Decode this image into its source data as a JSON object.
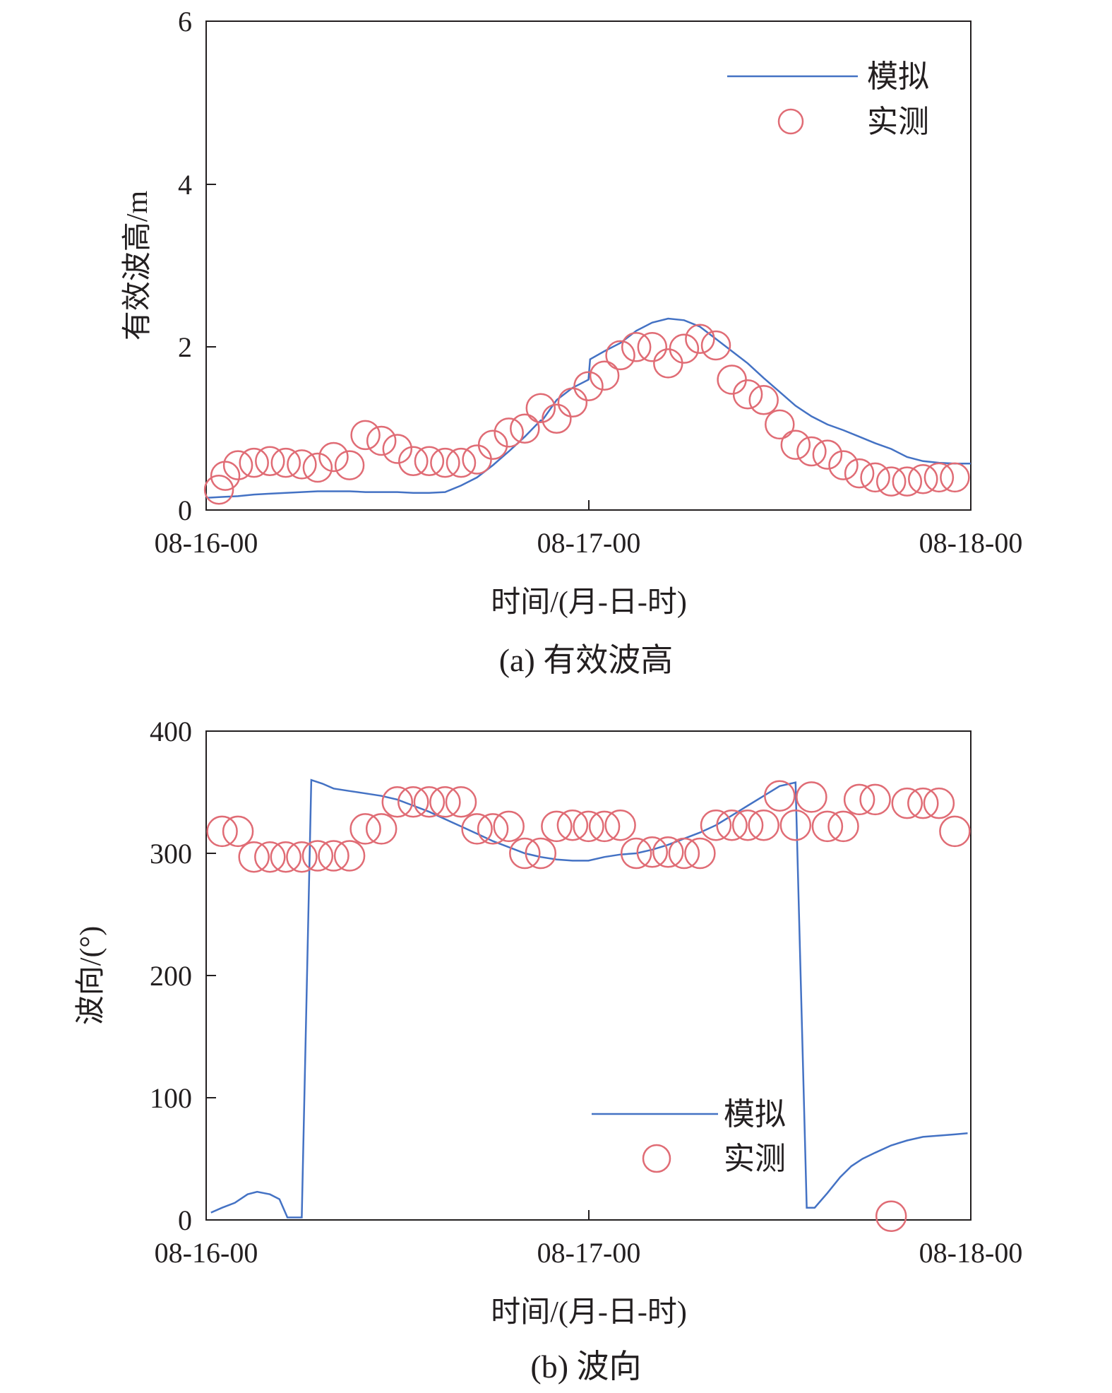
{
  "figure": {
    "panel_a_caption": "(a) 有效波高",
    "panel_b_caption": "(b) 波向"
  },
  "colors": {
    "simulated_line": "#4472c4",
    "observed_marker": "#e06c75",
    "axis": "#231f20"
  },
  "chart_data": [
    {
      "type": "line",
      "x_unit": "hours since 08-16-00",
      "xlabel": "时间/(月-日-时)",
      "ylabel": "有效波高/m",
      "xlim": [
        0,
        48
      ],
      "ylim": [
        0,
        6
      ],
      "x_ticks": [
        0,
        24,
        48
      ],
      "x_tick_labels": [
        "08-16-00",
        "08-17-00",
        "08-18-00"
      ],
      "y_ticks": [
        0,
        2,
        4,
        6
      ],
      "y_tick_labels": [
        "0",
        "2",
        "4",
        "6"
      ],
      "legend_position": "top-right",
      "legend": [
        "模拟",
        "实测"
      ],
      "series": [
        {
          "name": "模拟",
          "style": "line",
          "x": [
            0,
            1,
            2,
            3,
            4,
            5,
            6,
            7,
            8,
            9,
            10,
            11,
            12,
            13,
            14,
            15,
            16,
            17,
            18,
            19,
            20,
            21,
            21.1,
            22,
            23,
            24,
            24.1,
            25,
            26,
            27,
            28,
            29,
            30,
            31,
            32,
            33,
            34,
            35,
            36,
            37,
            38,
            39,
            40,
            41,
            42,
            43,
            44,
            45,
            46,
            47,
            48
          ],
          "y": [
            0.15,
            0.16,
            0.17,
            0.19,
            0.2,
            0.21,
            0.22,
            0.23,
            0.23,
            0.23,
            0.22,
            0.22,
            0.22,
            0.21,
            0.21,
            0.22,
            0.3,
            0.4,
            0.55,
            0.72,
            0.9,
            1.1,
            1.1,
            1.35,
            1.5,
            1.6,
            1.85,
            1.95,
            2.05,
            2.2,
            2.3,
            2.35,
            2.33,
            2.25,
            2.1,
            1.95,
            1.8,
            1.62,
            1.45,
            1.28,
            1.15,
            1.05,
            0.98,
            0.9,
            0.82,
            0.75,
            0.65,
            0.6,
            0.58,
            0.57,
            0.57
          ]
        },
        {
          "name": "实测",
          "style": "marker",
          "x": [
            0.8,
            1.2,
            2,
            3,
            4,
            5,
            6,
            7,
            8,
            9,
            10,
            11,
            12,
            13,
            14,
            15,
            16,
            17,
            18,
            19,
            20,
            21,
            22,
            23,
            24,
            25,
            26,
            27,
            28,
            29,
            30,
            31,
            32,
            33,
            34,
            35,
            36,
            37,
            38,
            39,
            40,
            41,
            42,
            43,
            44,
            45,
            46,
            47
          ],
          "y": [
            0.25,
            0.42,
            0.55,
            0.58,
            0.6,
            0.58,
            0.56,
            0.52,
            0.65,
            0.55,
            0.92,
            0.85,
            0.75,
            0.6,
            0.6,
            0.58,
            0.58,
            0.62,
            0.8,
            0.95,
            1.0,
            1.25,
            1.12,
            1.32,
            1.52,
            1.65,
            1.9,
            2.0,
            2.0,
            1.8,
            1.98,
            2.1,
            2.02,
            1.6,
            1.42,
            1.35,
            1.05,
            0.8,
            0.72,
            0.68,
            0.55,
            0.45,
            0.4,
            0.35,
            0.35,
            0.38,
            0.4,
            0.4
          ]
        }
      ]
    },
    {
      "type": "line",
      "x_unit": "hours since 08-16-00",
      "xlabel": "时间/(月-日-时)",
      "ylabel": "波向/(°)",
      "xlim": [
        0,
        48
      ],
      "ylim": [
        0,
        400
      ],
      "x_ticks": [
        0,
        24,
        48
      ],
      "x_tick_labels": [
        "08-16-00",
        "08-17-00",
        "08-18-00"
      ],
      "y_ticks": [
        0,
        100,
        200,
        300,
        400
      ],
      "y_tick_labels": [
        "0",
        "100",
        "200",
        "300",
        "400"
      ],
      "legend_position": "bottom-right",
      "legend": [
        "模拟",
        "实测"
      ],
      "series": [
        {
          "name": "模拟",
          "style": "line",
          "x": [
            0.3,
            1,
            1.8,
            2.6,
            3.2,
            4,
            4.6,
            5.1,
            6,
            6.6,
            7.3,
            8,
            9,
            10,
            11,
            12,
            13,
            14,
            15,
            16,
            17,
            18,
            19,
            20,
            21,
            22,
            23,
            24,
            25,
            26,
            27,
            28,
            29,
            30,
            31,
            32,
            33,
            34,
            35,
            36,
            37,
            37.7,
            38.2,
            39,
            39.8,
            40.5,
            41.2,
            42,
            43,
            44,
            45,
            46,
            47,
            47.8
          ],
          "y": [
            6,
            10,
            14,
            21,
            23,
            21,
            17,
            2,
            2,
            360,
            357,
            353,
            351,
            349,
            347,
            344,
            339,
            334,
            328,
            322,
            316,
            310,
            305,
            300,
            297,
            295,
            294,
            294,
            297,
            299,
            300,
            303,
            307,
            312,
            317,
            323,
            331,
            339,
            347,
            355,
            358,
            10,
            10,
            22,
            35,
            44,
            50,
            55,
            61,
            65,
            68,
            69,
            70,
            71
          ]
        },
        {
          "name": "实测",
          "style": "marker",
          "x": [
            1,
            2,
            3,
            4,
            5,
            6,
            7,
            8,
            9,
            10,
            11,
            12,
            13,
            14,
            15,
            16,
            17,
            18,
            19,
            20,
            21,
            22,
            23,
            24,
            25,
            26,
            27,
            28,
            29,
            30,
            31,
            32,
            33,
            34,
            35,
            36,
            37,
            38,
            39,
            40,
            41,
            42,
            43,
            44,
            45,
            46,
            47
          ],
          "y": [
            318,
            318,
            297,
            297,
            297,
            297,
            298,
            298,
            298,
            320,
            320,
            342,
            342,
            342,
            342,
            342,
            320,
            320,
            322,
            300,
            300,
            322,
            323,
            322,
            322,
            323,
            300,
            301,
            301,
            300,
            300,
            323,
            323,
            323,
            323,
            347,
            323,
            346,
            322,
            322,
            344,
            344,
            3,
            341,
            341,
            341,
            318
          ]
        }
      ]
    }
  ]
}
